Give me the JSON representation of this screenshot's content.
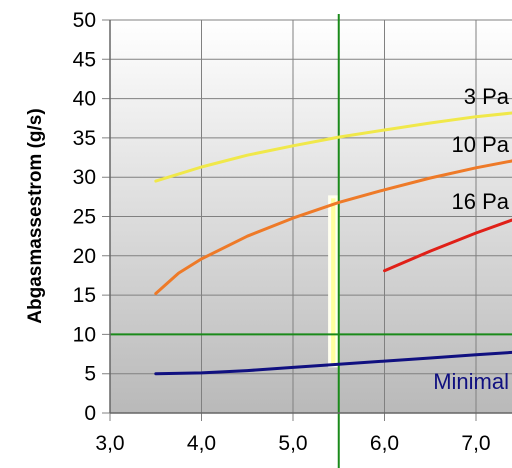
{
  "chart_data": {
    "type": "line",
    "title": "",
    "xlabel": "",
    "ylabel": "Abgasmassestrom (g/s)",
    "xlim": [
      3.0,
      7.5
    ],
    "ylim": [
      0,
      50
    ],
    "xticks": [
      "3,0",
      "4,0",
      "5,0",
      "6,0",
      "7,0"
    ],
    "yticks": [
      "0",
      "5",
      "10",
      "15",
      "20",
      "25",
      "30",
      "35",
      "40",
      "45",
      "50"
    ],
    "grid": true,
    "background": "gradient #ffffff to #bdbdbd",
    "series": [
      {
        "name": "3 Pa",
        "color": "#f0e84a",
        "points": [
          [
            3.5,
            29.5
          ],
          [
            4.0,
            31.3
          ],
          [
            4.5,
            32.8
          ],
          [
            5.0,
            34.0
          ],
          [
            5.5,
            35.1
          ],
          [
            6.0,
            36.0
          ],
          [
            6.5,
            36.9
          ],
          [
            7.0,
            37.7
          ],
          [
            7.5,
            38.3
          ]
        ]
      },
      {
        "name": "10 Pa",
        "color": "#ee7a28",
        "points": [
          [
            3.5,
            15.2
          ],
          [
            3.75,
            17.8
          ],
          [
            4.0,
            19.6
          ],
          [
            4.5,
            22.5
          ],
          [
            5.0,
            24.8
          ],
          [
            5.5,
            26.8
          ],
          [
            6.0,
            28.4
          ],
          [
            6.5,
            29.9
          ],
          [
            7.0,
            31.2
          ],
          [
            7.5,
            32.3
          ]
        ]
      },
      {
        "name": "16 Pa",
        "color": "#e02018",
        "points": [
          [
            6.0,
            18.1
          ],
          [
            6.5,
            20.6
          ],
          [
            7.0,
            22.9
          ],
          [
            7.5,
            25.0
          ]
        ]
      },
      {
        "name": "Minimal",
        "color": "#101080",
        "points": [
          [
            3.5,
            5.0
          ],
          [
            4.0,
            5.1
          ],
          [
            4.5,
            5.4
          ],
          [
            5.0,
            5.8
          ],
          [
            5.5,
            6.2
          ],
          [
            6.0,
            6.6
          ],
          [
            6.5,
            7.0
          ],
          [
            7.0,
            7.4
          ],
          [
            7.5,
            7.8
          ]
        ]
      }
    ],
    "reference_lines": {
      "vertical_x": 5.5,
      "horizontal_y": 10,
      "color": "#1a8a1a"
    },
    "highlight_band": {
      "x": [
        5.4,
        5.48
      ],
      "y": [
        6,
        27.5
      ],
      "color": "#ffffa0"
    }
  }
}
